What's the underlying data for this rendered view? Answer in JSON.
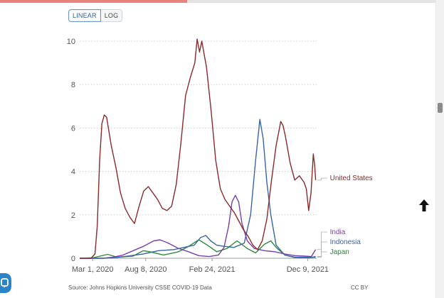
{
  "ui": {
    "scale_options": [
      "LINEAR",
      "LOG"
    ],
    "selected_scale": "LINEAR",
    "reading_progress": 0.43,
    "source": "Source: Johns Hopkins University CSSE COVID-19 Data",
    "license": "CC BY",
    "icons": {
      "scroll_up": "up-arrow-icon",
      "chat": "chat-bubble-icon"
    }
  },
  "chart_data": {
    "type": "line",
    "title": "",
    "xlabel": "",
    "ylabel": "",
    "ylim": [
      0,
      10
    ],
    "yticks": [
      0,
      2,
      4,
      6,
      8,
      10
    ],
    "x_ticks": [
      "Mar 1, 2020",
      "Aug 8, 2020",
      "Feb 24, 2021",
      "Dec 9, 2021"
    ],
    "x_range": [
      "2020-01-22",
      "2022-01-05"
    ],
    "grid": "horizontal dotted",
    "legend": "inline labels at right end of lines",
    "series": [
      {
        "name": "United States",
        "color": "#8b2a2a",
        "points": [
          [
            "2020-01-22",
            0
          ],
          [
            "2020-02-25",
            0
          ],
          [
            "2020-03-08",
            0.2
          ],
          [
            "2020-03-15",
            1.5
          ],
          [
            "2020-03-22",
            4.5
          ],
          [
            "2020-03-29",
            6.2
          ],
          [
            "2020-04-05",
            6.6
          ],
          [
            "2020-04-12",
            6.5
          ],
          [
            "2020-04-26",
            5.2
          ],
          [
            "2020-05-10",
            4.2
          ],
          [
            "2020-05-24",
            3.0
          ],
          [
            "2020-06-07",
            2.3
          ],
          [
            "2020-06-21",
            1.9
          ],
          [
            "2020-07-05",
            1.6
          ],
          [
            "2020-07-19",
            2.4
          ],
          [
            "2020-08-02",
            3.1
          ],
          [
            "2020-08-16",
            3.3
          ],
          [
            "2020-08-30",
            3.0
          ],
          [
            "2020-09-13",
            2.7
          ],
          [
            "2020-09-27",
            2.3
          ],
          [
            "2020-10-11",
            2.2
          ],
          [
            "2020-10-25",
            2.4
          ],
          [
            "2020-11-08",
            3.4
          ],
          [
            "2020-11-22",
            5.3
          ],
          [
            "2020-12-06",
            7.5
          ],
          [
            "2020-12-20",
            8.3
          ],
          [
            "2021-01-03",
            9.0
          ],
          [
            "2021-01-10",
            10.1
          ],
          [
            "2021-01-17",
            9.5
          ],
          [
            "2021-01-24",
            10.0
          ],
          [
            "2021-02-07",
            8.8
          ],
          [
            "2021-02-21",
            6.8
          ],
          [
            "2021-03-07",
            4.5
          ],
          [
            "2021-03-21",
            3.2
          ],
          [
            "2021-04-04",
            2.7
          ],
          [
            "2021-04-18",
            2.4
          ],
          [
            "2021-05-02",
            2.1
          ],
          [
            "2021-05-16",
            1.7
          ],
          [
            "2021-05-30",
            1.3
          ],
          [
            "2021-06-13",
            1.0
          ],
          [
            "2021-06-27",
            0.6
          ],
          [
            "2021-07-11",
            0.4
          ],
          [
            "2021-07-25",
            0.8
          ],
          [
            "2021-08-08",
            1.8
          ],
          [
            "2021-08-22",
            3.6
          ],
          [
            "2021-09-05",
            5.2
          ],
          [
            "2021-09-19",
            6.3
          ],
          [
            "2021-09-26",
            6.1
          ],
          [
            "2021-10-03",
            5.6
          ],
          [
            "2021-10-17",
            4.4
          ],
          [
            "2021-10-31",
            3.6
          ],
          [
            "2021-11-14",
            3.8
          ],
          [
            "2021-11-28",
            3.5
          ],
          [
            "2021-12-05",
            3.2
          ],
          [
            "2021-12-12",
            2.2
          ],
          [
            "2021-12-19",
            3.0
          ],
          [
            "2021-12-26",
            4.8
          ],
          [
            "2021-12-30",
            4.3
          ],
          [
            "2022-01-02",
            3.6
          ]
        ]
      },
      {
        "name": "India",
        "color": "#7b3fa8",
        "points": [
          [
            "2020-01-22",
            0
          ],
          [
            "2020-04-01",
            0
          ],
          [
            "2020-05-01",
            0.05
          ],
          [
            "2020-06-01",
            0.15
          ],
          [
            "2020-07-01",
            0.35
          ],
          [
            "2020-08-01",
            0.55
          ],
          [
            "2020-09-01",
            0.8
          ],
          [
            "2020-09-20",
            0.85
          ],
          [
            "2020-10-15",
            0.7
          ],
          [
            "2020-11-15",
            0.45
          ],
          [
            "2020-12-15",
            0.3
          ],
          [
            "2021-01-15",
            0.12
          ],
          [
            "2021-02-15",
            0.08
          ],
          [
            "2021-03-15",
            0.15
          ],
          [
            "2021-04-01",
            0.5
          ],
          [
            "2021-04-15",
            1.5
          ],
          [
            "2021-04-25",
            2.6
          ],
          [
            "2021-05-05",
            2.9
          ],
          [
            "2021-05-15",
            2.6
          ],
          [
            "2021-05-25",
            1.6
          ],
          [
            "2021-06-10",
            0.8
          ],
          [
            "2021-07-01",
            0.45
          ],
          [
            "2021-08-01",
            0.35
          ],
          [
            "2021-09-01",
            0.3
          ],
          [
            "2021-10-01",
            0.2
          ],
          [
            "2021-11-01",
            0.12
          ],
          [
            "2021-12-01",
            0.1
          ],
          [
            "2021-12-20",
            0.08
          ],
          [
            "2022-01-02",
            0.4
          ]
        ]
      },
      {
        "name": "Indonesia",
        "color": "#3a64a8",
        "points": [
          [
            "2020-01-22",
            0
          ],
          [
            "2020-04-01",
            0
          ],
          [
            "2020-05-01",
            0.02
          ],
          [
            "2020-06-15",
            0.1
          ],
          [
            "2020-08-01",
            0.2
          ],
          [
            "2020-09-15",
            0.35
          ],
          [
            "2020-11-01",
            0.4
          ],
          [
            "2020-12-01",
            0.5
          ],
          [
            "2021-01-01",
            0.6
          ],
          [
            "2021-01-20",
            0.95
          ],
          [
            "2021-02-05",
            1.05
          ],
          [
            "2021-02-20",
            0.8
          ],
          [
            "2021-03-10",
            0.6
          ],
          [
            "2021-04-01",
            0.55
          ],
          [
            "2021-05-01",
            0.5
          ],
          [
            "2021-06-01",
            0.7
          ],
          [
            "2021-06-20",
            2.0
          ],
          [
            "2021-07-05",
            4.5
          ],
          [
            "2021-07-18",
            6.4
          ],
          [
            "2021-07-28",
            5.5
          ],
          [
            "2021-08-08",
            3.5
          ],
          [
            "2021-08-20",
            2.0
          ],
          [
            "2021-09-05",
            0.6
          ],
          [
            "2021-10-01",
            0.15
          ],
          [
            "2021-11-01",
            0.05
          ],
          [
            "2022-01-02",
            0.05
          ]
        ]
      },
      {
        "name": "Japan",
        "color": "#2e8b3e",
        "points": [
          [
            "2020-01-22",
            0
          ],
          [
            "2020-03-01",
            0.02
          ],
          [
            "2020-04-15",
            0.18
          ],
          [
            "2020-05-15",
            0.05
          ],
          [
            "2020-07-01",
            0.1
          ],
          [
            "2020-08-01",
            0.35
          ],
          [
            "2020-08-20",
            0.3
          ],
          [
            "2020-10-01",
            0.15
          ],
          [
            "2020-11-15",
            0.3
          ],
          [
            "2020-12-15",
            0.55
          ],
          [
            "2021-01-15",
            0.85
          ],
          [
            "2021-02-10",
            0.6
          ],
          [
            "2021-03-10",
            0.3
          ],
          [
            "2021-04-10",
            0.45
          ],
          [
            "2021-05-10",
            0.8
          ],
          [
            "2021-06-10",
            0.45
          ],
          [
            "2021-07-05",
            0.25
          ],
          [
            "2021-08-01",
            0.65
          ],
          [
            "2021-08-20",
            0.8
          ],
          [
            "2021-09-05",
            0.5
          ],
          [
            "2021-10-01",
            0.15
          ],
          [
            "2021-11-01",
            0.03
          ],
          [
            "2021-12-15",
            0.02
          ],
          [
            "2022-01-02",
            0.08
          ]
        ]
      }
    ]
  }
}
